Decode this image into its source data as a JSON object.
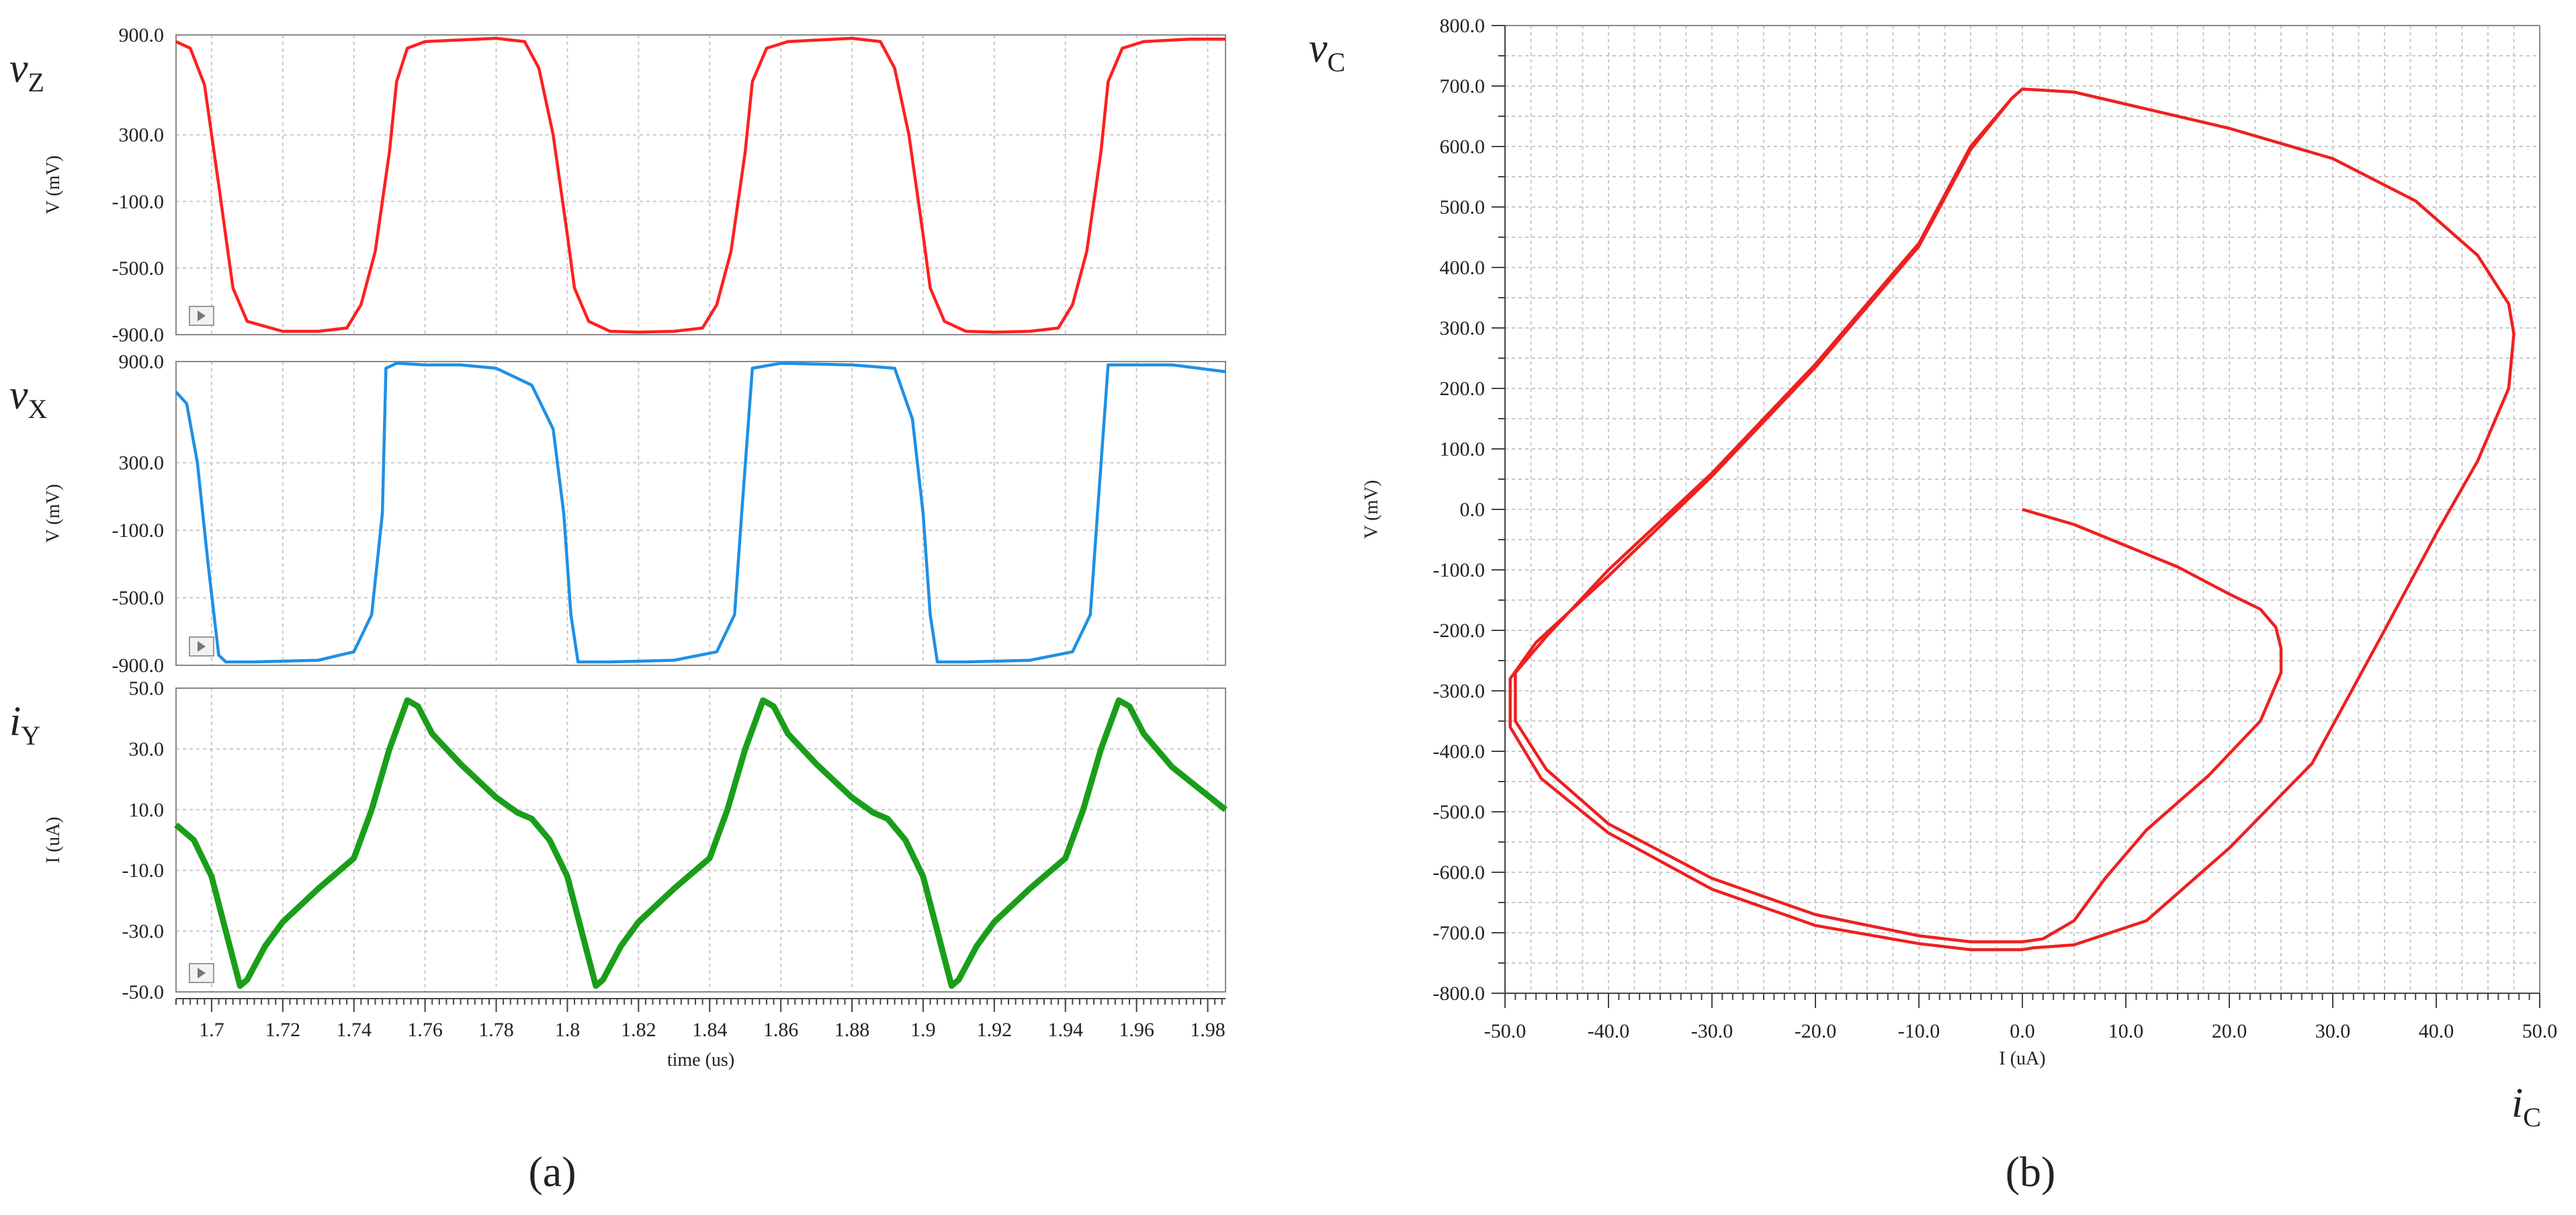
{
  "colors": {
    "vz": "#ff1f1f",
    "vx": "#1e90e6",
    "iy": "#1a9e1a",
    "vc": "#ee2020"
  },
  "captions": {
    "a": "(a)",
    "b": "(b)"
  },
  "chart_data": [
    {
      "type": "line",
      "panel": "a",
      "xlabel": "time (us)",
      "x_range": [
        1.69,
        1.985
      ],
      "x_ticks": [
        1.7,
        1.72,
        1.74,
        1.76,
        1.78,
        1.8,
        1.82,
        1.84,
        1.86,
        1.88,
        1.9,
        1.92,
        1.94,
        1.96,
        1.98
      ],
      "x_tick_labels": [
        "1.7",
        "1.72",
        "1.74",
        "1.76",
        "1.78",
        "1.8",
        "1.82",
        "1.84",
        "1.86",
        "1.88",
        "1.9",
        "1.92",
        "1.94",
        "1.96",
        "1.98"
      ],
      "grid": true,
      "subplots": [
        {
          "key": "vz",
          "name_main": "v",
          "name_sub": "Z",
          "ylabel": "V (mV)",
          "ylim": [
            -900,
            900
          ],
          "y_tick_values": [
            900,
            300,
            -100,
            -500,
            -900
          ],
          "y_tick_labels": [
            "900.0",
            "300.0",
            "-100.0",
            "-500.0",
            "-900.0"
          ],
          "x": [
            1.69,
            1.694,
            1.698,
            1.702,
            1.706,
            1.71,
            1.72,
            1.73,
            1.738,
            1.742,
            1.746,
            1.75,
            1.752,
            1.755,
            1.76,
            1.78,
            1.788,
            1.792,
            1.796,
            1.8,
            1.802,
            1.806,
            1.812,
            1.82,
            1.83,
            1.838,
            1.842,
            1.846,
            1.85,
            1.852,
            1.856,
            1.862,
            1.88,
            1.888,
            1.892,
            1.896,
            1.9,
            1.902,
            1.906,
            1.912,
            1.92,
            1.93,
            1.938,
            1.942,
            1.946,
            1.95,
            1.952,
            1.956,
            1.962,
            1.975,
            1.985
          ],
          "y": [
            860,
            820,
            600,
            0,
            -620,
            -820,
            -880,
            -880,
            -860,
            -720,
            -400,
            200,
            620,
            820,
            860,
            880,
            860,
            700,
            300,
            -300,
            -620,
            -820,
            -880,
            -885,
            -880,
            -860,
            -720,
            -400,
            200,
            620,
            820,
            860,
            880,
            860,
            700,
            300,
            -300,
            -620,
            -820,
            -880,
            -885,
            -880,
            -860,
            -720,
            -400,
            200,
            620,
            820,
            860,
            875,
            875
          ]
        },
        {
          "key": "vx",
          "name_main": "v",
          "name_sub": "X",
          "ylabel": "V (mV)",
          "ylim": [
            -900,
            900
          ],
          "y_tick_values": [
            900,
            300,
            -100,
            -500,
            -900
          ],
          "y_tick_labels": [
            "900.0",
            "300.0",
            "-100.0",
            "-500.0",
            "-900.0"
          ],
          "x": [
            1.69,
            1.693,
            1.696,
            1.699,
            1.702,
            1.704,
            1.712,
            1.73,
            1.74,
            1.745,
            1.748,
            1.749,
            1.752,
            1.76,
            1.77,
            1.78,
            1.79,
            1.796,
            1.799,
            1.801,
            1.803,
            1.812,
            1.83,
            1.842,
            1.847,
            1.849,
            1.852,
            1.86,
            1.88,
            1.892,
            1.897,
            1.9,
            1.902,
            1.904,
            1.912,
            1.93,
            1.942,
            1.947,
            1.949,
            1.952,
            1.97,
            1.985
          ],
          "y": [
            720,
            650,
            300,
            -300,
            -840,
            -880,
            -880,
            -870,
            -820,
            -600,
            0,
            860,
            890,
            880,
            880,
            860,
            760,
            500,
            0,
            -600,
            -880,
            -880,
            -870,
            -820,
            -600,
            0,
            860,
            890,
            880,
            860,
            560,
            0,
            -600,
            -880,
            -880,
            -870,
            -820,
            -600,
            0,
            880,
            880,
            840
          ]
        },
        {
          "key": "iy",
          "name_main": "i",
          "name_sub": "Y",
          "ylabel": "I (uA)",
          "ylim": [
            -50,
            50
          ],
          "y_tick_values": [
            50,
            30,
            10,
            -10,
            -30,
            -50
          ],
          "y_tick_labels": [
            "50.0",
            "30.0",
            "10.0",
            "-10.0",
            "-30.0",
            "-50.0"
          ],
          "x": [
            1.69,
            1.695,
            1.7,
            1.704,
            1.708,
            1.71,
            1.715,
            1.72,
            1.73,
            1.74,
            1.745,
            1.75,
            1.755,
            1.758,
            1.762,
            1.77,
            1.78,
            1.786,
            1.79,
            1.795,
            1.8,
            1.804,
            1.808,
            1.81,
            1.815,
            1.82,
            1.83,
            1.84,
            1.845,
            1.85,
            1.855,
            1.858,
            1.862,
            1.87,
            1.88,
            1.886,
            1.89,
            1.895,
            1.9,
            1.904,
            1.908,
            1.91,
            1.915,
            1.92,
            1.93,
            1.94,
            1.945,
            1.95,
            1.955,
            1.958,
            1.962,
            1.97,
            1.985
          ],
          "y": [
            5,
            0,
            -12,
            -30,
            -48,
            -46,
            -35,
            -27,
            -16,
            -6,
            10,
            30,
            46,
            44,
            35,
            25,
            14,
            9,
            7,
            0,
            -12,
            -30,
            -48,
            -46,
            -35,
            -27,
            -16,
            -6,
            10,
            30,
            46,
            44,
            35,
            25,
            14,
            9,
            7,
            0,
            -12,
            -30,
            -48,
            -46,
            -35,
            -27,
            -16,
            -6,
            10,
            30,
            46,
            44,
            35,
            24,
            10
          ]
        }
      ]
    },
    {
      "type": "line",
      "panel": "b",
      "name_main": "v",
      "name_sub": "C",
      "xname_main": "i",
      "xname_sub": "C",
      "xlabel": "I (uA)",
      "ylabel": "V (mV)",
      "xlim": [
        -50,
        50
      ],
      "ylim": [
        -800,
        800
      ],
      "x_tick_values": [
        -50,
        -40,
        -30,
        -20,
        -10,
        0,
        10,
        20,
        30,
        40,
        50
      ],
      "x_tick_labels": [
        "-50.0",
        "-40.0",
        "-30.0",
        "-20.0",
        "-10.0",
        "0.0",
        "10.0",
        "20.0",
        "30.0",
        "40.0",
        "50.0"
      ],
      "y_tick_values": [
        800,
        700,
        600,
        500,
        400,
        300,
        200,
        100,
        0,
        -100,
        -200,
        -300,
        -400,
        -500,
        -600,
        -700,
        -800
      ],
      "y_tick_labels": [
        "800.0",
        "700.0",
        "600.0",
        "500.0",
        "400.0",
        "300.0",
        "200.0",
        "100.0",
        "0.0",
        "-100.0",
        "-200.0",
        "-300.0",
        "-400.0",
        "-500.0",
        "-600.0",
        "-700.0",
        "-800.0"
      ],
      "grid": true,
      "series": [
        {
          "x": [
            0,
            5,
            10,
            15,
            20,
            23,
            24.5,
            25,
            25,
            23,
            18,
            12,
            8,
            5,
            2,
            0,
            -5,
            -10,
            -20,
            -30,
            -40,
            -46,
            -49,
            -49,
            -46,
            -40,
            -30,
            -20,
            -10,
            -5,
            -1,
            0,
            5,
            10,
            20,
            30,
            38,
            44,
            47,
            47.5,
            47,
            44,
            40,
            35,
            28,
            20,
            12,
            5,
            1,
            0,
            -5,
            -10,
            -20,
            -30,
            -40,
            -46.5,
            -49.5,
            -49.5,
            -47,
            -40,
            -30,
            -20,
            -10,
            -5,
            -1,
            0
          ],
          "y": [
            0,
            -25,
            -60,
            -95,
            -140,
            -165,
            -195,
            -230,
            -270,
            -350,
            -440,
            -530,
            -610,
            -680,
            -710,
            -715,
            -715,
            -705,
            -670,
            -610,
            -520,
            -430,
            -350,
            -270,
            -210,
            -100,
            60,
            240,
            440,
            600,
            680,
            695,
            690,
            670,
            630,
            580,
            510,
            420,
            340,
            290,
            200,
            80,
            -40,
            -200,
            -420,
            -560,
            -680,
            -720,
            -725,
            -728,
            -728,
            -718,
            -688,
            -628,
            -535,
            -445,
            -360,
            -280,
            -220,
            -110,
            55,
            235,
            435,
            595,
            680,
            695
          ]
        }
      ]
    }
  ]
}
